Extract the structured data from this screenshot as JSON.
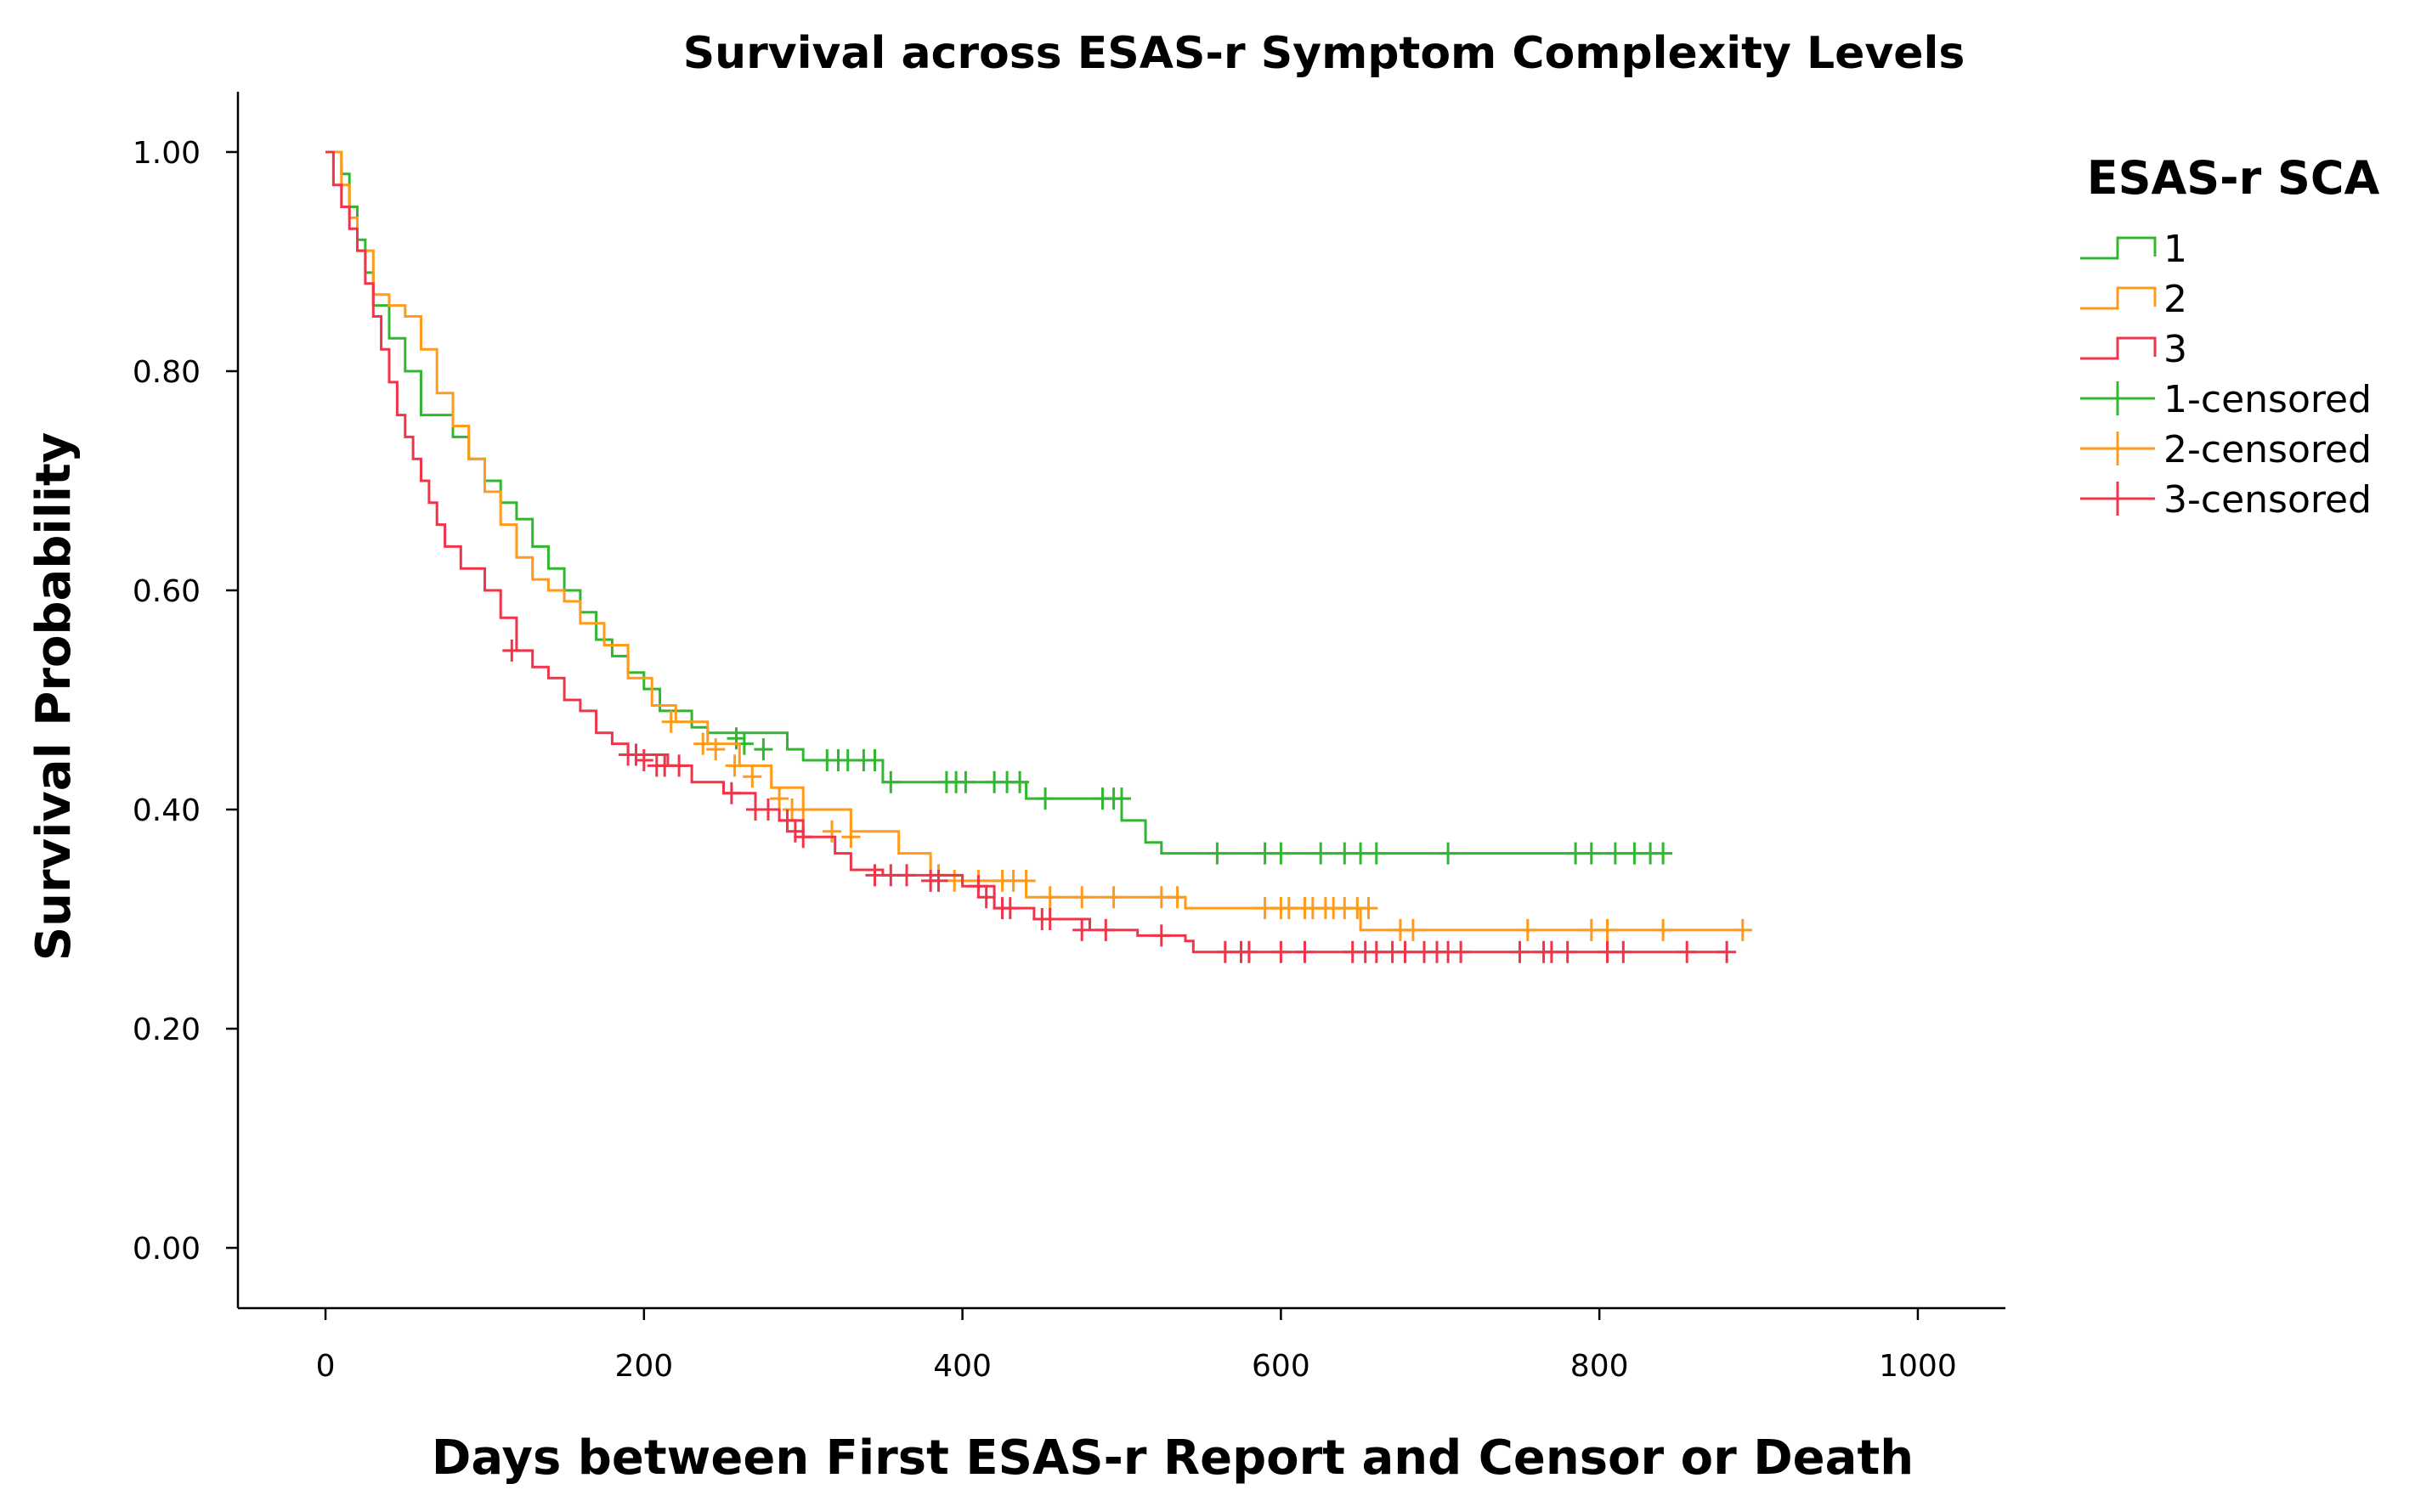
{
  "chart_data": {
    "type": "line",
    "subtype": "kaplan-meier",
    "title": "Survival across ESAS-r Symptom Complexity Levels",
    "xlabel": "Days between First ESAS-r Report and Censor or Death",
    "ylabel": "Survival Probability",
    "xlim": [
      -55,
      1055
    ],
    "ylim": [
      -0.055,
      1.055
    ],
    "xticks": [
      0,
      200,
      400,
      600,
      800,
      1000
    ],
    "yticks": [
      0.0,
      0.2,
      0.4,
      0.6,
      0.8,
      1.0
    ],
    "xtick_labels": [
      "0",
      "200",
      "400",
      "600",
      "800",
      "1000"
    ],
    "ytick_labels": [
      "0.00",
      "0.20",
      "0.40",
      "0.60",
      "0.80",
      "1.00"
    ],
    "legend": {
      "title": "ESAS-r SCA",
      "position": "right",
      "entries": [
        "1",
        "2",
        "3",
        "1-censored",
        "2-censored",
        "3-censored"
      ]
    },
    "series": [
      {
        "name": "1",
        "color": "#2fb82f",
        "steps": [
          [
            0,
            1.0
          ],
          [
            10,
            0.98
          ],
          [
            15,
            0.95
          ],
          [
            20,
            0.92
          ],
          [
            25,
            0.89
          ],
          [
            30,
            0.86
          ],
          [
            40,
            0.83
          ],
          [
            50,
            0.8
          ],
          [
            60,
            0.76
          ],
          [
            80,
            0.74
          ],
          [
            90,
            0.72
          ],
          [
            100,
            0.7
          ],
          [
            110,
            0.68
          ],
          [
            120,
            0.665
          ],
          [
            130,
            0.64
          ],
          [
            140,
            0.62
          ],
          [
            150,
            0.6
          ],
          [
            160,
            0.58
          ],
          [
            170,
            0.555
          ],
          [
            180,
            0.54
          ],
          [
            190,
            0.525
          ],
          [
            200,
            0.51
          ],
          [
            210,
            0.49
          ],
          [
            230,
            0.475
          ],
          [
            240,
            0.47
          ],
          [
            290,
            0.455
          ],
          [
            300,
            0.445
          ],
          [
            350,
            0.425
          ],
          [
            440,
            0.41
          ],
          [
            500,
            0.39
          ],
          [
            515,
            0.37
          ],
          [
            525,
            0.36
          ],
          [
            840,
            0.36
          ]
        ],
        "censored": [
          [
            258,
            0.465
          ],
          [
            263,
            0.46
          ],
          [
            275,
            0.455
          ],
          [
            315,
            0.445
          ],
          [
            322,
            0.445
          ],
          [
            328,
            0.445
          ],
          [
            338,
            0.445
          ],
          [
            345,
            0.445
          ],
          [
            355,
            0.425
          ],
          [
            390,
            0.425
          ],
          [
            396,
            0.425
          ],
          [
            402,
            0.425
          ],
          [
            420,
            0.425
          ],
          [
            428,
            0.425
          ],
          [
            436,
            0.425
          ],
          [
            452,
            0.41
          ],
          [
            488,
            0.41
          ],
          [
            495,
            0.41
          ],
          [
            500,
            0.41
          ],
          [
            560,
            0.36
          ],
          [
            590,
            0.36
          ],
          [
            600,
            0.36
          ],
          [
            625,
            0.36
          ],
          [
            640,
            0.36
          ],
          [
            650,
            0.36
          ],
          [
            660,
            0.36
          ],
          [
            705,
            0.36
          ],
          [
            785,
            0.36
          ],
          [
            795,
            0.36
          ],
          [
            810,
            0.36
          ],
          [
            822,
            0.36
          ],
          [
            832,
            0.36
          ],
          [
            840,
            0.36
          ]
        ]
      },
      {
        "name": "2",
        "color": "#ff9a1a",
        "steps": [
          [
            0,
            1.0
          ],
          [
            10,
            0.97
          ],
          [
            15,
            0.94
          ],
          [
            20,
            0.91
          ],
          [
            30,
            0.87
          ],
          [
            40,
            0.86
          ],
          [
            50,
            0.85
          ],
          [
            60,
            0.82
          ],
          [
            70,
            0.78
          ],
          [
            80,
            0.75
          ],
          [
            90,
            0.72
          ],
          [
            100,
            0.69
          ],
          [
            110,
            0.66
          ],
          [
            120,
            0.63
          ],
          [
            130,
            0.61
          ],
          [
            140,
            0.6
          ],
          [
            150,
            0.59
          ],
          [
            160,
            0.57
          ],
          [
            175,
            0.55
          ],
          [
            190,
            0.52
          ],
          [
            205,
            0.495
          ],
          [
            220,
            0.48
          ],
          [
            240,
            0.46
          ],
          [
            260,
            0.44
          ],
          [
            280,
            0.42
          ],
          [
            300,
            0.4
          ],
          [
            330,
            0.38
          ],
          [
            360,
            0.36
          ],
          [
            380,
            0.34
          ],
          [
            400,
            0.335
          ],
          [
            440,
            0.32
          ],
          [
            540,
            0.31
          ],
          [
            650,
            0.29
          ],
          [
            890,
            0.29
          ]
        ],
        "censored": [
          [
            217,
            0.48
          ],
          [
            237,
            0.46
          ],
          [
            245,
            0.455
          ],
          [
            257,
            0.44
          ],
          [
            268,
            0.43
          ],
          [
            285,
            0.41
          ],
          [
            293,
            0.4
          ],
          [
            300,
            0.4
          ],
          [
            318,
            0.38
          ],
          [
            330,
            0.375
          ],
          [
            385,
            0.34
          ],
          [
            395,
            0.335
          ],
          [
            410,
            0.335
          ],
          [
            425,
            0.335
          ],
          [
            432,
            0.335
          ],
          [
            440,
            0.335
          ],
          [
            455,
            0.32
          ],
          [
            475,
            0.32
          ],
          [
            495,
            0.32
          ],
          [
            525,
            0.32
          ],
          [
            535,
            0.32
          ],
          [
            590,
            0.31
          ],
          [
            600,
            0.31
          ],
          [
            605,
            0.31
          ],
          [
            615,
            0.31
          ],
          [
            620,
            0.31
          ],
          [
            628,
            0.31
          ],
          [
            633,
            0.31
          ],
          [
            640,
            0.31
          ],
          [
            648,
            0.31
          ],
          [
            655,
            0.31
          ],
          [
            675,
            0.29
          ],
          [
            683,
            0.29
          ],
          [
            755,
            0.29
          ],
          [
            795,
            0.29
          ],
          [
            805,
            0.29
          ],
          [
            840,
            0.29
          ],
          [
            890,
            0.29
          ]
        ]
      },
      {
        "name": "3",
        "color": "#f0344a",
        "steps": [
          [
            0,
            1.0
          ],
          [
            5,
            0.97
          ],
          [
            10,
            0.95
          ],
          [
            15,
            0.93
          ],
          [
            20,
            0.91
          ],
          [
            25,
            0.88
          ],
          [
            30,
            0.85
          ],
          [
            35,
            0.82
          ],
          [
            40,
            0.79
          ],
          [
            45,
            0.76
          ],
          [
            50,
            0.74
          ],
          [
            55,
            0.72
          ],
          [
            60,
            0.7
          ],
          [
            65,
            0.68
          ],
          [
            70,
            0.66
          ],
          [
            75,
            0.64
          ],
          [
            85,
            0.62
          ],
          [
            100,
            0.6
          ],
          [
            110,
            0.575
          ],
          [
            120,
            0.545
          ],
          [
            130,
            0.53
          ],
          [
            140,
            0.52
          ],
          [
            150,
            0.5
          ],
          [
            160,
            0.49
          ],
          [
            170,
            0.47
          ],
          [
            180,
            0.46
          ],
          [
            190,
            0.45
          ],
          [
            215,
            0.44
          ],
          [
            230,
            0.425
          ],
          [
            250,
            0.415
          ],
          [
            270,
            0.4
          ],
          [
            285,
            0.39
          ],
          [
            300,
            0.375
          ],
          [
            320,
            0.36
          ],
          [
            330,
            0.345
          ],
          [
            350,
            0.34
          ],
          [
            400,
            0.33
          ],
          [
            420,
            0.31
          ],
          [
            445,
            0.3
          ],
          [
            480,
            0.29
          ],
          [
            510,
            0.285
          ],
          [
            540,
            0.28
          ],
          [
            545,
            0.27
          ],
          [
            880,
            0.27
          ]
        ],
        "censored": [
          [
            117,
            0.545
          ],
          [
            190,
            0.45
          ],
          [
            195,
            0.45
          ],
          [
            200,
            0.445
          ],
          [
            208,
            0.44
          ],
          [
            213,
            0.44
          ],
          [
            222,
            0.44
          ],
          [
            255,
            0.415
          ],
          [
            270,
            0.4
          ],
          [
            278,
            0.4
          ],
          [
            290,
            0.39
          ],
          [
            295,
            0.38
          ],
          [
            300,
            0.375
          ],
          [
            345,
            0.34
          ],
          [
            355,
            0.34
          ],
          [
            365,
            0.34
          ],
          [
            380,
            0.335
          ],
          [
            385,
            0.335
          ],
          [
            410,
            0.33
          ],
          [
            415,
            0.32
          ],
          [
            425,
            0.31
          ],
          [
            430,
            0.31
          ],
          [
            450,
            0.3
          ],
          [
            455,
            0.3
          ],
          [
            475,
            0.29
          ],
          [
            490,
            0.29
          ],
          [
            525,
            0.285
          ],
          [
            565,
            0.27
          ],
          [
            575,
            0.27
          ],
          [
            580,
            0.27
          ],
          [
            600,
            0.27
          ],
          [
            615,
            0.27
          ],
          [
            645,
            0.27
          ],
          [
            653,
            0.27
          ],
          [
            660,
            0.27
          ],
          [
            670,
            0.27
          ],
          [
            678,
            0.27
          ],
          [
            690,
            0.27
          ],
          [
            698,
            0.27
          ],
          [
            705,
            0.27
          ],
          [
            713,
            0.27
          ],
          [
            750,
            0.27
          ],
          [
            765,
            0.27
          ],
          [
            770,
            0.27
          ],
          [
            780,
            0.27
          ],
          [
            805,
            0.27
          ],
          [
            815,
            0.27
          ],
          [
            855,
            0.27
          ],
          [
            880,
            0.27
          ]
        ]
      }
    ]
  }
}
